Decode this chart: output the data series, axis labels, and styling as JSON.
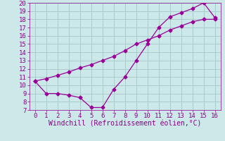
{
  "xlabel": "Windchill (Refroidissement éolien,°C)",
  "line1_x": [
    0,
    1,
    2,
    3,
    4,
    5,
    6,
    7,
    8,
    9,
    10,
    11,
    12,
    13,
    14,
    15,
    16
  ],
  "line1_y": [
    10.5,
    9.0,
    9.0,
    8.8,
    8.5,
    7.3,
    7.3,
    9.5,
    11.0,
    13.0,
    15.0,
    17.0,
    18.3,
    18.8,
    19.3,
    20.0,
    18.2
  ],
  "line2_x": [
    0,
    1,
    2,
    3,
    4,
    5,
    6,
    7,
    8,
    9,
    10,
    11,
    12,
    13,
    14,
    15,
    16
  ],
  "line2_y": [
    10.5,
    10.8,
    11.2,
    11.6,
    12.1,
    12.5,
    13.0,
    13.5,
    14.2,
    15.0,
    15.5,
    16.0,
    16.7,
    17.2,
    17.7,
    18.0,
    18.0
  ],
  "line_color": "#990099",
  "bg_color": "#cce8e8",
  "grid_color": "#aacccc",
  "xlim": [
    -0.5,
    16.5
  ],
  "ylim": [
    7,
    20
  ],
  "xticks": [
    0,
    1,
    2,
    3,
    4,
    5,
    6,
    7,
    8,
    9,
    10,
    11,
    12,
    13,
    14,
    15,
    16
  ],
  "yticks": [
    7,
    8,
    9,
    10,
    11,
    12,
    13,
    14,
    15,
    16,
    17,
    18,
    19,
    20
  ],
  "tick_color": "#880088",
  "tick_fontsize": 6.5,
  "xlabel_fontsize": 7,
  "marker": "D",
  "markersize": 2.5,
  "linewidth": 0.9
}
